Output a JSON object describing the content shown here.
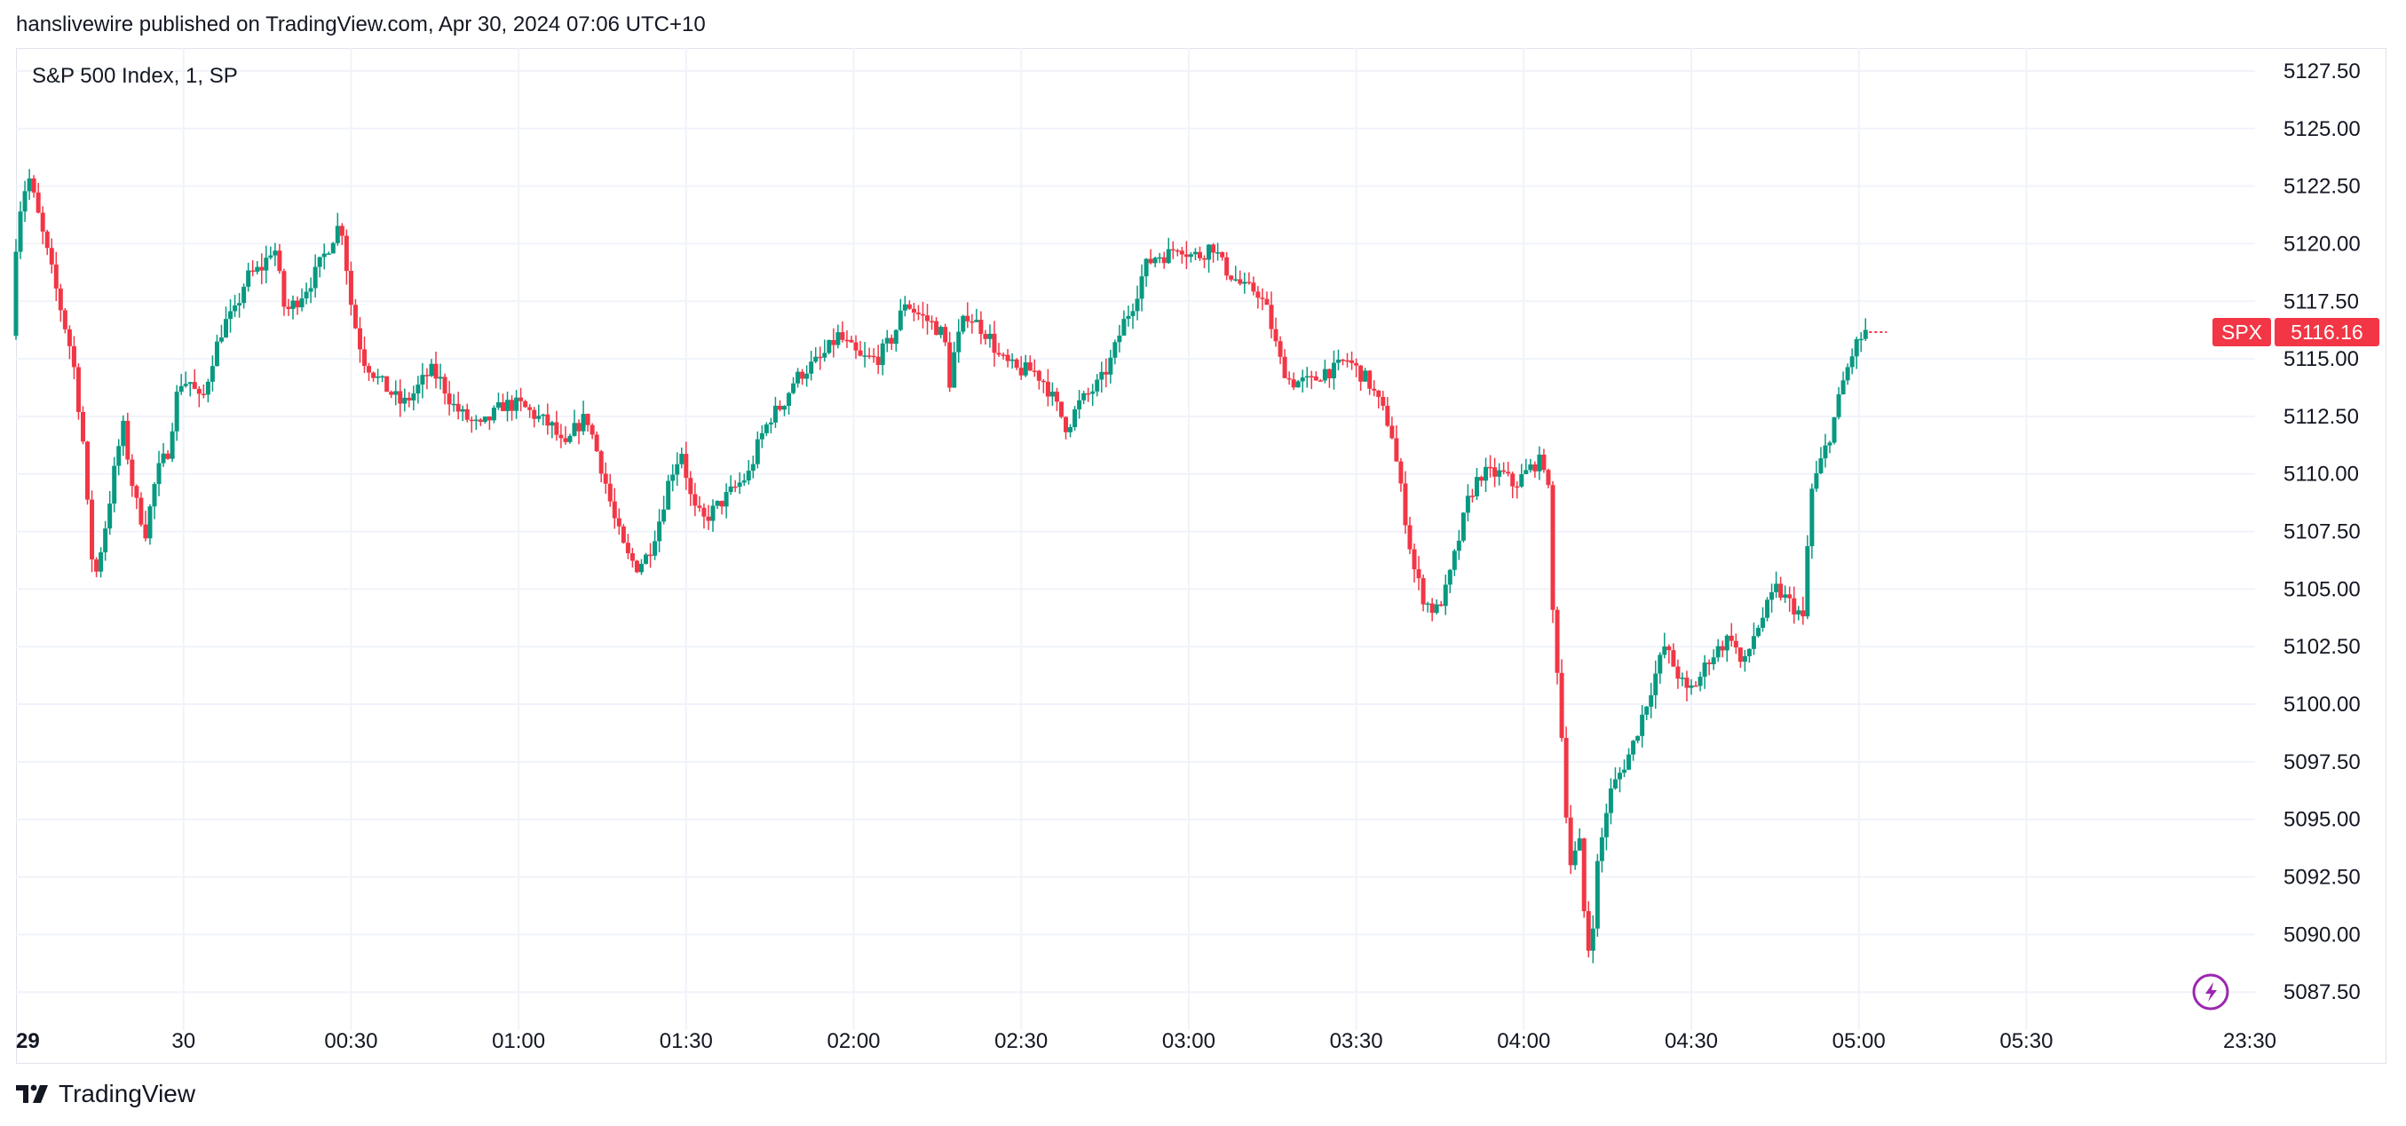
{
  "header": {
    "attribution": "hanslivewire published on TradingView.com, Apr 30, 2024 07:06 UTC+10"
  },
  "footer": {
    "brand": "TradingView"
  },
  "colors": {
    "up": "#089981",
    "down": "#f23645",
    "grid": "#f0f3fa",
    "text": "#131722",
    "badge": "#f23645",
    "bolt": "#9c27b0"
  },
  "chart_data": {
    "type": "candlestick",
    "title": "S&P 500 Index, 1, SP",
    "symbol_badge": "SPX",
    "last_price": 5116.16,
    "last_price_label": "5116.16",
    "ylim": [
      5085.0,
      5128.0
    ],
    "y_ticks": [
      {
        "value": 5127.5,
        "label": "5127.50"
      },
      {
        "value": 5125.0,
        "label": "5125.00"
      },
      {
        "value": 5122.5,
        "label": "5122.50"
      },
      {
        "value": 5120.0,
        "label": "5120.00"
      },
      {
        "value": 5117.5,
        "label": "5117.50"
      },
      {
        "value": 5115.0,
        "label": "5115.00"
      },
      {
        "value": 5112.5,
        "label": "5112.50"
      },
      {
        "value": 5110.0,
        "label": "5110.00"
      },
      {
        "value": 5107.5,
        "label": "5107.50"
      },
      {
        "value": 5105.0,
        "label": "5105.00"
      },
      {
        "value": 5102.5,
        "label": "5102.50"
      },
      {
        "value": 5100.0,
        "label": "5100.00"
      },
      {
        "value": 5097.5,
        "label": "5097.50"
      },
      {
        "value": 5095.0,
        "label": "5095.00"
      },
      {
        "value": 5092.5,
        "label": "5092.50"
      },
      {
        "value": 5090.0,
        "label": "5090.00"
      },
      {
        "value": 5087.5,
        "label": "5087.50"
      }
    ],
    "x_ticks": [
      {
        "minute": 0,
        "label": "29"
      },
      {
        "minute": 30,
        "label": "30"
      },
      {
        "minute": 60,
        "label": "00:30"
      },
      {
        "minute": 90,
        "label": "01:00"
      },
      {
        "minute": 120,
        "label": "01:30"
      },
      {
        "minute": 150,
        "label": "02:00"
      },
      {
        "minute": 180,
        "label": "02:30"
      },
      {
        "minute": 210,
        "label": "03:00"
      },
      {
        "minute": 240,
        "label": "03:30"
      },
      {
        "minute": 270,
        "label": "04:00"
      },
      {
        "minute": 300,
        "label": "04:30"
      },
      {
        "minute": 330,
        "label": "05:00"
      },
      {
        "minute": 360,
        "label": "05:30"
      },
      {
        "minute": 400,
        "label": "23:30"
      }
    ],
    "x_minutes": [
      0,
      402
    ],
    "grid": true,
    "price_path": [
      [
        0,
        5116
      ],
      [
        1,
        5121
      ],
      [
        3,
        5123
      ],
      [
        5,
        5121
      ],
      [
        7,
        5119
      ],
      [
        9,
        5117
      ],
      [
        11,
        5115
      ],
      [
        13,
        5111
      ],
      [
        14,
        5107
      ],
      [
        15,
        5105.5
      ],
      [
        17,
        5108
      ],
      [
        19,
        5111
      ],
      [
        20,
        5112
      ],
      [
        22,
        5109
      ],
      [
        24,
        5107.5
      ],
      [
        26,
        5110
      ],
      [
        28,
        5111
      ],
      [
        30,
        5114
      ],
      [
        32,
        5114
      ],
      [
        34,
        5113
      ],
      [
        36,
        5115
      ],
      [
        38,
        5116.5
      ],
      [
        40,
        5117
      ],
      [
        42,
        5118.5
      ],
      [
        45,
        5119
      ],
      [
        47,
        5120
      ],
      [
        49,
        5117
      ],
      [
        51,
        5117.5
      ],
      [
        54,
        5118.5
      ],
      [
        57,
        5120
      ],
      [
        59,
        5121
      ],
      [
        61,
        5117
      ],
      [
        63,
        5115
      ],
      [
        66,
        5114
      ],
      [
        68,
        5113.5
      ],
      [
        70,
        5113
      ],
      [
        72,
        5113.5
      ],
      [
        75,
        5114.5
      ],
      [
        77,
        5114
      ],
      [
        79,
        5113
      ],
      [
        81,
        5112.5
      ],
      [
        84,
        5112
      ],
      [
        86,
        5112.5
      ],
      [
        88,
        5113
      ],
      [
        91,
        5113
      ],
      [
        94,
        5112.5
      ],
      [
        97,
        5112
      ],
      [
        99,
        5111
      ],
      [
        101,
        5112
      ],
      [
        103,
        5112.5
      ],
      [
        106,
        5110
      ],
      [
        108,
        5108
      ],
      [
        110,
        5106.5
      ],
      [
        112,
        5106
      ],
      [
        114,
        5106.5
      ],
      [
        116,
        5108
      ],
      [
        118,
        5110
      ],
      [
        120,
        5111
      ],
      [
        122,
        5108.5
      ],
      [
        124,
        5108
      ],
      [
        126,
        5108.5
      ],
      [
        128,
        5109
      ],
      [
        130,
        5109.5
      ],
      [
        132,
        5110
      ],
      [
        134,
        5111.5
      ],
      [
        136,
        5112.5
      ],
      [
        138,
        5113
      ],
      [
        140,
        5114
      ],
      [
        142,
        5114.5
      ],
      [
        145,
        5115
      ],
      [
        148,
        5116
      ],
      [
        150,
        5115.5
      ],
      [
        152,
        5115
      ],
      [
        155,
        5115
      ],
      [
        158,
        5116
      ],
      [
        160,
        5117.5
      ],
      [
        162,
        5117
      ],
      [
        165,
        5116.5
      ],
      [
        167,
        5116
      ],
      [
        168,
        5114
      ],
      [
        169,
        5115.5
      ],
      [
        171,
        5117
      ],
      [
        173,
        5116.5
      ],
      [
        175,
        5116
      ],
      [
        177,
        5115
      ],
      [
        180,
        5114.5
      ],
      [
        183,
        5114.5
      ],
      [
        185,
        5114
      ],
      [
        187,
        5113
      ],
      [
        189,
        5112
      ],
      [
        191,
        5113
      ],
      [
        193,
        5113.5
      ],
      [
        195,
        5114
      ],
      [
        197,
        5115
      ],
      [
        199,
        5116.5
      ],
      [
        201,
        5117.5
      ],
      [
        203,
        5119
      ],
      [
        205,
        5119.5
      ],
      [
        207,
        5119.5
      ],
      [
        209,
        5120
      ],
      [
        211,
        5119.5
      ],
      [
        213,
        5119.5
      ],
      [
        215,
        5120
      ],
      [
        217,
        5119
      ],
      [
        219,
        5118.5
      ],
      [
        221,
        5118
      ],
      [
        223,
        5118
      ],
      [
        225,
        5117
      ],
      [
        227,
        5115
      ],
      [
        229,
        5114
      ],
      [
        231,
        5114
      ],
      [
        233,
        5114
      ],
      [
        235,
        5114.5
      ],
      [
        237,
        5114.5
      ],
      [
        239,
        5115
      ],
      [
        241,
        5114.5
      ],
      [
        243,
        5114
      ],
      [
        245,
        5113
      ],
      [
        247,
        5112
      ],
      [
        249,
        5109
      ],
      [
        251,
        5106
      ],
      [
        253,
        5104.5
      ],
      [
        255,
        5104
      ],
      [
        257,
        5105
      ],
      [
        259,
        5107
      ],
      [
        261,
        5109
      ],
      [
        263,
        5110
      ],
      [
        265,
        5110
      ],
      [
        267,
        5110
      ],
      [
        269,
        5109.5
      ],
      [
        271,
        5110
      ],
      [
        273,
        5110.5
      ],
      [
        275,
        5110.5
      ],
      [
        276,
        5104
      ],
      [
        277,
        5101
      ],
      [
        278,
        5097
      ],
      [
        279,
        5093
      ],
      [
        281,
        5094
      ],
      [
        282,
        5089
      ],
      [
        283,
        5090
      ],
      [
        284,
        5093
      ],
      [
        286,
        5096
      ],
      [
        288,
        5097
      ],
      [
        290,
        5098
      ],
      [
        292,
        5099.5
      ],
      [
        294,
        5101
      ],
      [
        296,
        5102.5
      ],
      [
        298,
        5101.5
      ],
      [
        300,
        5100.5
      ],
      [
        302,
        5101
      ],
      [
        304,
        5102
      ],
      [
        306,
        5102.5
      ],
      [
        308,
        5103
      ],
      [
        310,
        5101.5
      ],
      [
        312,
        5103
      ],
      [
        314,
        5104
      ],
      [
        316,
        5105
      ],
      [
        318,
        5104.5
      ],
      [
        320,
        5104
      ],
      [
        321,
        5103.5
      ],
      [
        322,
        5109
      ],
      [
        324,
        5110.5
      ],
      [
        326,
        5112
      ],
      [
        328,
        5114
      ],
      [
        330,
        5115.5
      ],
      [
        332,
        5116.16
      ]
    ],
    "date_label_visible": "29"
  }
}
